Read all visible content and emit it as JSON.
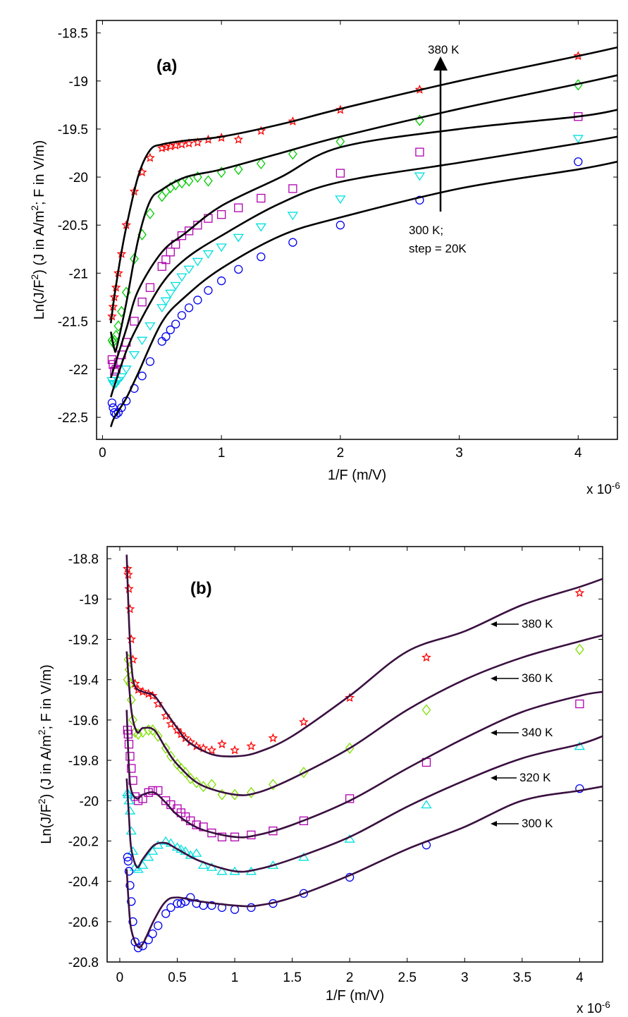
{
  "chart_data": [
    {
      "type": "line",
      "panel_label": "(a)",
      "xlabel": "1/F (m/V)",
      "ylabel": "Ln(J/F2) (J in A/m2; F in V/m)",
      "x_multiplier": "x 10-6",
      "xlim": [
        -0.05,
        4.33
      ],
      "ylim": [
        -22.73,
        -18.37
      ],
      "xticks": [
        0,
        1,
        2,
        3,
        4
      ],
      "yticks": [
        -18.5,
        -19,
        -19.5,
        -20,
        -20.5,
        -21,
        -21.5,
        -22,
        -22.5
      ],
      "grid": false,
      "fit_color": "#000000",
      "annotations": {
        "top": "380 K",
        "bottom_line1": "300 K;",
        "bottom_line2": "step = 20K"
      },
      "marker_x": [
        4,
        2.667,
        2,
        1.6,
        1.333,
        1.143,
        1,
        0.889,
        0.8,
        0.727,
        0.667,
        0.615,
        0.571,
        0.533,
        0.5,
        0.4,
        0.333,
        0.267,
        0.2,
        0.16,
        0.133,
        0.114,
        0.1,
        0.089,
        0.08
      ],
      "series": [
        {
          "marker": "star",
          "color": "#ff0000",
          "markers": [
            -18.74,
            -19.09,
            -19.3,
            -19.42,
            -19.52,
            -19.61,
            -19.59,
            -19.61,
            -19.64,
            -19.65,
            -19.66,
            -19.67,
            -19.68,
            -19.69,
            -19.7,
            -19.8,
            -19.95,
            -20.15,
            -20.5,
            -20.8,
            -21.0,
            -21.15,
            -21.25,
            -21.35,
            -21.45
          ],
          "fit_x": [
            0.07,
            0.1,
            0.15,
            0.2,
            0.3,
            0.4,
            0.5,
            0.7,
            1,
            1.5,
            2,
            3,
            4,
            4.33
          ],
          "fit_y": [
            -21.52,
            -21.24,
            -20.85,
            -20.52,
            -19.99,
            -19.72,
            -19.66,
            -19.62,
            -19.58,
            -19.45,
            -19.29,
            -19.0,
            -18.74,
            -18.65
          ]
        },
        {
          "marker": "diamond",
          "color": "#00cc00",
          "markers": [
            -19.04,
            -19.41,
            -19.63,
            -19.76,
            -19.86,
            -19.92,
            -19.95,
            -20.04,
            -20.0,
            -20.04,
            -20.06,
            -20.08,
            -20.11,
            -20.15,
            -20.2,
            -20.38,
            -20.6,
            -20.85,
            -21.2,
            -21.4,
            -21.55,
            -21.65,
            -21.7,
            -21.72,
            -21.7
          ],
          "fit_x": [
            0.07,
            0.1,
            0.12,
            0.2,
            0.3,
            0.4,
            0.5,
            0.7,
            1,
            1.5,
            2,
            3,
            4,
            4.33
          ],
          "fit_y": [
            -21.61,
            -21.79,
            -21.77,
            -21.31,
            -20.65,
            -20.25,
            -20.13,
            -20.0,
            -19.92,
            -19.75,
            -19.58,
            -19.29,
            -19.03,
            -18.94
          ]
        },
        {
          "marker": "square",
          "color": "#b000b0",
          "markers": [
            -19.37,
            -19.74,
            -19.96,
            -20.12,
            -20.22,
            -20.32,
            -20.39,
            -20.43,
            -20.5,
            -20.56,
            -20.61,
            -20.7,
            -20.78,
            -20.86,
            -20.93,
            -21.15,
            -21.3,
            -21.5,
            -21.72,
            -21.85,
            -21.93,
            -22.0,
            -22.02,
            -21.95,
            -21.9
          ],
          "fit_x": [
            0.07,
            0.1,
            0.2,
            0.3,
            0.5,
            0.7,
            1,
            1.5,
            2,
            3,
            4,
            4.33
          ],
          "fit_y": [
            -22.09,
            -21.97,
            -21.58,
            -21.18,
            -20.78,
            -20.58,
            -20.3,
            -20.0,
            -19.69,
            -19.5,
            -19.37,
            -19.3
          ]
        },
        {
          "marker": "triangle-down",
          "color": "#00e0e0",
          "markers": [
            -19.6,
            -19.99,
            -20.23,
            -20.4,
            -20.52,
            -20.63,
            -20.73,
            -20.8,
            -20.88,
            -20.96,
            -21.04,
            -21.13,
            -21.21,
            -21.29,
            -21.36,
            -21.55,
            -21.7,
            -21.85,
            -22.0,
            -22.08,
            -22.12,
            -22.15,
            -22.16,
            -22.15,
            -22.12
          ],
          "fit_x": [
            0.07,
            0.1,
            0.2,
            0.3,
            0.5,
            0.7,
            1,
            1.5,
            2,
            3,
            4,
            4.33
          ],
          "fit_y": [
            -22.29,
            -22.17,
            -21.81,
            -21.54,
            -21.11,
            -20.85,
            -20.61,
            -20.27,
            -20.05,
            -19.85,
            -19.65,
            -19.58
          ]
        },
        {
          "marker": "circle",
          "color": "#0000ee",
          "markers": [
            -19.84,
            -20.24,
            -20.5,
            -20.68,
            -20.83,
            -20.96,
            -21.08,
            -21.18,
            -21.28,
            -21.36,
            -21.44,
            -21.53,
            -21.59,
            -21.66,
            -21.71,
            -21.92,
            -22.07,
            -22.2,
            -22.33,
            -22.4,
            -22.45,
            -22.47,
            -22.45,
            -22.4,
            -22.35
          ],
          "fit_x": [
            0.07,
            0.1,
            0.2,
            0.3,
            0.5,
            0.7,
            1,
            1.5,
            2,
            3,
            4,
            4.33
          ],
          "fit_y": [
            -22.6,
            -22.5,
            -22.3,
            -22.04,
            -21.51,
            -21.24,
            -20.95,
            -20.61,
            -20.42,
            -20.12,
            -19.92,
            -19.84
          ]
        }
      ]
    },
    {
      "type": "line",
      "panel_label": "(b)",
      "xlabel": "1/F (m/V)",
      "ylabel": "Ln(J/F2) (J in A/m2; F in V/m)",
      "x_multiplier": "x 10-6",
      "xlim": [
        -0.11,
        4.2
      ],
      "ylim": [
        -20.8,
        -18.74
      ],
      "xticks": [
        0,
        0.5,
        1,
        1.5,
        2,
        2.5,
        3,
        3.5,
        4
      ],
      "yticks": [
        -18.8,
        -19,
        -19.2,
        -19.4,
        -19.6,
        -19.8,
        -20,
        -20.2,
        -20.4,
        -20.6,
        -20.8
      ],
      "grid": false,
      "fit_color": "#3a1040",
      "marker_x": [
        4,
        2.667,
        2,
        1.6,
        1.333,
        1.143,
        1,
        0.889,
        0.8,
        0.727,
        0.667,
        0.615,
        0.571,
        0.533,
        0.5,
        0.444,
        0.4,
        0.333,
        0.286,
        0.25,
        0.2,
        0.16,
        0.133,
        0.114,
        0.1,
        0.089,
        0.08,
        0.073,
        0.067
      ],
      "series": [
        {
          "name": "380 K",
          "marker": "star",
          "color": "#ff0000",
          "markers": [
            -18.97,
            -19.29,
            -19.49,
            -19.61,
            -19.69,
            -19.73,
            -19.75,
            -19.72,
            -19.75,
            -19.74,
            -19.73,
            -19.71,
            -19.69,
            -19.67,
            -19.65,
            -19.62,
            -19.58,
            -19.52,
            -19.48,
            -19.47,
            -19.46,
            -19.45,
            -19.42,
            -19.3,
            -19.2,
            -19.05,
            -18.95,
            -18.88,
            -18.85
          ],
          "fit_x": [
            0.06,
            0.08,
            0.1,
            0.13,
            0.2,
            0.3,
            0.4,
            0.5,
            0.6,
            0.8,
            1,
            1.2,
            1.5,
            2,
            2.5,
            3,
            3.5,
            4,
            4.2
          ],
          "fit_y": [
            -18.78,
            -19.11,
            -19.32,
            -19.43,
            -19.46,
            -19.48,
            -19.56,
            -19.64,
            -19.71,
            -19.77,
            -19.78,
            -19.76,
            -19.68,
            -19.48,
            -19.26,
            -19.16,
            -19.03,
            -18.94,
            -18.9
          ]
        },
        {
          "name": "360 K",
          "marker": "diamond",
          "color": "#80e000",
          "markers": [
            -19.25,
            -19.55,
            -19.74,
            -19.86,
            -19.92,
            -19.96,
            -19.97,
            -19.97,
            -19.92,
            -19.93,
            -19.91,
            -19.89,
            -19.86,
            -19.84,
            -19.82,
            -19.78,
            -19.74,
            -19.68,
            -19.65,
            -19.65,
            -19.66,
            -19.67,
            -19.66,
            -19.6,
            -19.5,
            -19.42,
            -19.35,
            -19.3,
            -19.4
          ],
          "fit_x": [
            0.06,
            0.1,
            0.15,
            0.2,
            0.3,
            0.4,
            0.5,
            0.7,
            1,
            1.2,
            1.5,
            2,
            2.5,
            3,
            3.5,
            4,
            4.2
          ],
          "fit_y": [
            -19.26,
            -19.55,
            -19.66,
            -19.64,
            -19.65,
            -19.74,
            -19.82,
            -19.92,
            -19.97,
            -19.96,
            -19.89,
            -19.74,
            -19.55,
            -19.4,
            -19.29,
            -19.21,
            -19.18
          ]
        },
        {
          "name": "340 K",
          "marker": "square",
          "color": "#b000b0",
          "markers": [
            -19.52,
            -19.81,
            -19.99,
            -20.1,
            -20.15,
            -20.17,
            -20.18,
            -20.18,
            -20.16,
            -20.13,
            -20.12,
            -20.1,
            -20.08,
            -20.06,
            -20.04,
            -20.02,
            -20.0,
            -19.95,
            -19.95,
            -19.96,
            -19.99,
            -20.0,
            -19.98,
            -19.9,
            -19.84,
            -19.78,
            -19.72,
            -19.67,
            -19.65
          ],
          "fit_x": [
            0.06,
            0.08,
            0.1,
            0.15,
            0.2,
            0.3,
            0.4,
            0.5,
            0.7,
            1,
            1.2,
            1.5,
            2,
            2.5,
            3,
            3.5,
            4,
            4.2
          ],
          "fit_y": [
            -19.55,
            -19.84,
            -19.95,
            -19.99,
            -19.97,
            -19.96,
            -20.01,
            -20.07,
            -20.14,
            -20.18,
            -20.17,
            -20.12,
            -20.0,
            -19.84,
            -19.69,
            -19.56,
            -19.48,
            -19.46
          ]
        },
        {
          "name": "320 K",
          "marker": "triangle-up",
          "color": "#00e0e0",
          "markers": [
            -19.73,
            -20.02,
            -20.19,
            -20.28,
            -20.32,
            -20.35,
            -20.35,
            -20.35,
            -20.33,
            -20.32,
            -20.26,
            -20.27,
            -20.25,
            -20.24,
            -20.23,
            -20.21,
            -20.2,
            -20.22,
            -20.25,
            -20.28,
            -20.32,
            -20.34,
            -20.33,
            -20.25,
            -20.15,
            -20.05,
            -20.0,
            -19.97,
            -19.96
          ],
          "fit_x": [
            0.06,
            0.08,
            0.1,
            0.15,
            0.2,
            0.3,
            0.4,
            0.5,
            0.7,
            1,
            1.2,
            1.5,
            2,
            2.5,
            3,
            3.5,
            4,
            4.2
          ],
          "fit_y": [
            -19.89,
            -20.08,
            -20.24,
            -20.33,
            -20.29,
            -20.22,
            -20.21,
            -20.24,
            -20.3,
            -20.35,
            -20.34,
            -20.29,
            -20.18,
            -20.03,
            -19.9,
            -19.79,
            -19.72,
            -19.68
          ]
        },
        {
          "name": "300 K",
          "marker": "circle",
          "color": "#0000ee",
          "markers": [
            -19.94,
            -20.22,
            -20.38,
            -20.46,
            -20.51,
            -20.53,
            -20.54,
            -20.53,
            -20.52,
            -20.52,
            -20.51,
            -20.48,
            -20.5,
            -20.51,
            -20.51,
            -20.53,
            -20.56,
            -20.62,
            -20.66,
            -20.69,
            -20.72,
            -20.73,
            -20.7,
            -20.6,
            -20.5,
            -20.42,
            -20.35,
            -20.3,
            -20.28
          ],
          "fit_x": [
            0.06,
            0.08,
            0.1,
            0.15,
            0.2,
            0.3,
            0.4,
            0.5,
            0.7,
            1,
            1.2,
            1.5,
            2,
            2.5,
            3,
            3.5,
            4,
            4.2
          ],
          "fit_y": [
            -20.34,
            -20.53,
            -20.64,
            -20.72,
            -20.71,
            -20.59,
            -20.5,
            -20.48,
            -20.5,
            -20.52,
            -20.52,
            -20.48,
            -20.37,
            -20.24,
            -20.13,
            -20.0,
            -19.95,
            -19.93
          ]
        }
      ]
    }
  ]
}
